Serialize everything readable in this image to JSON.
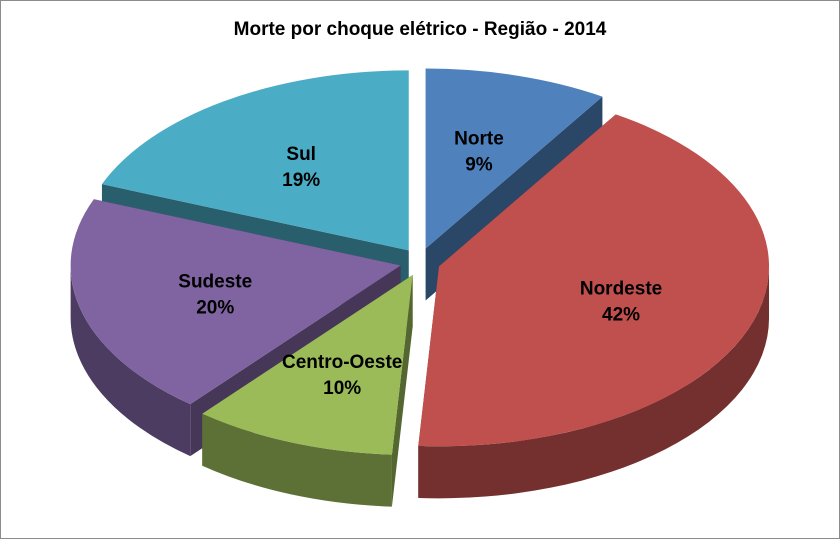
{
  "chart_data": {
    "type": "pie",
    "title": "Morte por choque elétrico - Região - 2014",
    "slices": [
      {
        "label": "Norte",
        "value": 9,
        "value_label": "9%",
        "color": "#4f81bd"
      },
      {
        "label": "Nordeste",
        "value": 42,
        "value_label": "42%",
        "color": "#c0504d"
      },
      {
        "label": "Centro-Oeste",
        "value": 10,
        "value_label": "10%",
        "color": "#9bbb59"
      },
      {
        "label": "Sudeste",
        "value": 20,
        "value_label": "20%",
        "color": "#8064a2"
      },
      {
        "label": "Sul",
        "value": 19,
        "value_label": "19%",
        "color": "#4bacc6"
      }
    ],
    "style": "3d-exploded",
    "legend": "none"
  }
}
